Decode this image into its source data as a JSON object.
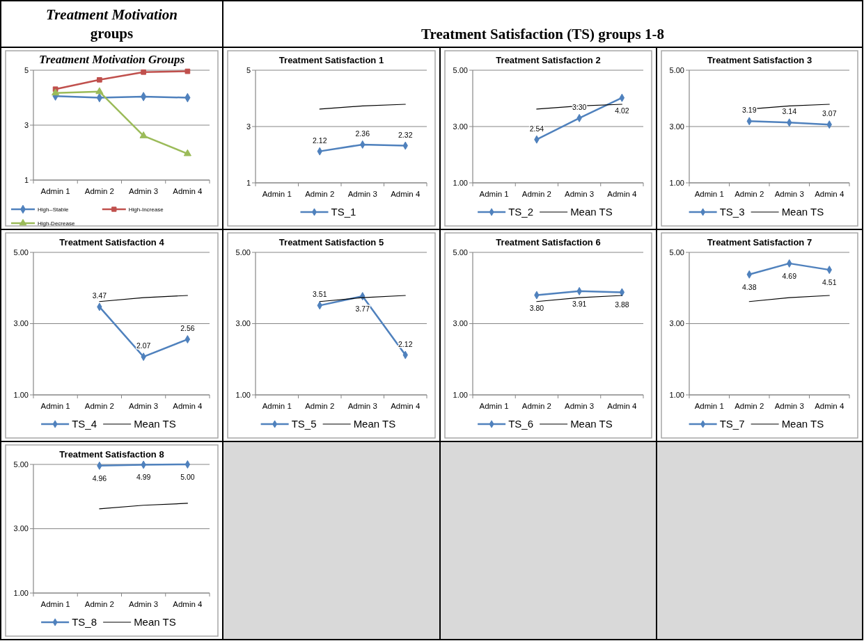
{
  "chart_data": [
    {
      "type": "line",
      "title": "Treatment Motivation Groups",
      "annotations": [
        "Treatment Motivation groups"
      ],
      "categories": [
        "Admin 1",
        "Admin 2",
        "Admin 3",
        "Admin 4"
      ],
      "ylim": [
        1,
        5
      ],
      "yticks": [
        1,
        3,
        5
      ],
      "grid": "y",
      "legend": "bottom",
      "line_style": "solid",
      "series": [
        {
          "name": "High--Stable",
          "color": "#4f81bd",
          "marker": "diamond",
          "values": [
            4.06,
            4.0,
            4.04,
            4.0
          ]
        },
        {
          "name": "High-Increase",
          "color": "#c0504d",
          "marker": "square",
          "values": [
            4.31,
            4.65,
            4.93,
            4.96
          ]
        },
        {
          "name": "High-Decrease",
          "color": "#9bbb59",
          "marker": "triangle",
          "values": [
            4.17,
            4.22,
            2.61,
            1.96
          ]
        }
      ]
    },
    {
      "type": "line",
      "title": "Treatment Satisfaction 1",
      "annotations": [
        "Treatment Satisfaction (TS) groups 1-8"
      ],
      "categories": [
        "Admin 1",
        "Admin 2",
        "Admin 3",
        "Admin 4"
      ],
      "ylim": [
        1,
        5
      ],
      "yticks": [
        1,
        3,
        5
      ],
      "grid": "y",
      "legend": "bottom",
      "line_style": "solid",
      "series": [
        {
          "name": "TS_1",
          "color": "#4f81bd",
          "marker": "diamond",
          "values": [
            null,
            2.12,
            2.36,
            2.32
          ],
          "value_labels": [
            null,
            "2.12",
            "2.36",
            "2.32"
          ]
        },
        {
          "color": "#000000",
          "marker": "none",
          "values": [
            null,
            3.62,
            3.73,
            3.79
          ]
        }
      ]
    },
    {
      "type": "line",
      "title": "Treatment Satisfaction 2",
      "categories": [
        "Admin 1",
        "Admin 2",
        "Admin 3",
        "Admin 4"
      ],
      "ylim": [
        1,
        5
      ],
      "yticks": [
        {
          "value": 1,
          "label": "1.00"
        },
        {
          "value": 3,
          "label": "3.00"
        },
        {
          "value": 5,
          "label": "5.00"
        }
      ],
      "grid": "y",
      "legend": "bottom",
      "line_style": "solid",
      "series": [
        {
          "name": "TS_2",
          "color": "#4f81bd",
          "marker": "diamond",
          "values": [
            null,
            2.54,
            3.3,
            4.02
          ],
          "value_labels": [
            null,
            "2.54",
            "3.30",
            "4.02"
          ]
        },
        {
          "name": "Mean TS",
          "color": "#000000",
          "marker": "none",
          "values": [
            null,
            3.62,
            3.73,
            3.79
          ]
        }
      ]
    },
    {
      "type": "line",
      "title": "Treatment Satisfaction 3",
      "categories": [
        "Admin 1",
        "Admin 2",
        "Admin 3",
        "Admin 4"
      ],
      "ylim": [
        1,
        5
      ],
      "yticks": [
        {
          "value": 1,
          "label": "1.00"
        },
        {
          "value": 3,
          "label": "3.00"
        },
        {
          "value": 5,
          "label": "5.00"
        }
      ],
      "grid": "y",
      "legend": "bottom",
      "line_style": "solid",
      "series": [
        {
          "name": "TS_3",
          "color": "#4f81bd",
          "marker": "diamond",
          "values": [
            null,
            3.19,
            3.14,
            3.07
          ],
          "value_labels": [
            null,
            "3.19",
            "3.14",
            "3.07"
          ]
        },
        {
          "name": "Mean TS",
          "color": "#000000",
          "marker": "none",
          "values": [
            null,
            3.62,
            3.73,
            3.79
          ]
        }
      ]
    },
    {
      "type": "line",
      "title": "Treatment Satisfaction 4",
      "categories": [
        "Admin 1",
        "Admin 2",
        "Admin 3",
        "Admin 4"
      ],
      "ylim": [
        1,
        5
      ],
      "yticks": [
        {
          "value": 1,
          "label": "1.00"
        },
        {
          "value": 3,
          "label": "3.00"
        },
        {
          "value": 5,
          "label": "5.00"
        }
      ],
      "grid": "y",
      "legend": "bottom",
      "line_style": "solid",
      "series": [
        {
          "name": "TS_4",
          "color": "#4f81bd",
          "marker": "diamond",
          "values": [
            null,
            3.47,
            2.07,
            2.56
          ],
          "value_labels": [
            null,
            "3.47",
            "2.07",
            "2.56"
          ]
        },
        {
          "name": "Mean TS",
          "color": "#000000",
          "marker": "none",
          "values": [
            null,
            3.62,
            3.73,
            3.79
          ]
        }
      ]
    },
    {
      "type": "line",
      "title": "Treatment Satisfaction 5",
      "categories": [
        "Admin 1",
        "Admin 2",
        "Admin 3",
        "Admin 4"
      ],
      "ylim": [
        1,
        5
      ],
      "yticks": [
        {
          "value": 1,
          "label": "1.00"
        },
        {
          "value": 3,
          "label": "3.00"
        },
        {
          "value": 5,
          "label": "5.00"
        }
      ],
      "grid": "y",
      "legend": "bottom",
      "line_style": "solid",
      "series": [
        {
          "name": "TS_5",
          "color": "#4f81bd",
          "marker": "diamond",
          "values": [
            null,
            3.51,
            3.77,
            2.12
          ],
          "value_labels": [
            null,
            "3.51",
            "3.77",
            "2.12"
          ]
        },
        {
          "name": "Mean TS",
          "color": "#000000",
          "marker": "none",
          "values": [
            null,
            3.62,
            3.73,
            3.79
          ]
        }
      ]
    },
    {
      "type": "line",
      "title": "Treatment Satisfaction 6",
      "categories": [
        "Admin 1",
        "Admin 2",
        "Admin 3",
        "Admin 4"
      ],
      "ylim": [
        1,
        5
      ],
      "yticks": [
        {
          "value": 1,
          "label": "1.00"
        },
        {
          "value": 3,
          "label": "3.00"
        },
        {
          "value": 5,
          "label": "5.00"
        }
      ],
      "grid": "y",
      "legend": "bottom",
      "line_style": "solid",
      "series": [
        {
          "name": "TS_6",
          "color": "#4f81bd",
          "marker": "diamond",
          "values": [
            null,
            3.8,
            3.91,
            3.88
          ],
          "value_labels": [
            null,
            "3.80",
            "3.91",
            "3.88"
          ]
        },
        {
          "name": "Mean TS",
          "color": "#000000",
          "marker": "none",
          "values": [
            null,
            3.62,
            3.73,
            3.79
          ]
        }
      ]
    },
    {
      "type": "line",
      "title": "Treatment Satisfaction 7",
      "categories": [
        "Admin 1",
        "Admin 2",
        "Admin 3",
        "Admin 4"
      ],
      "ylim": [
        1,
        5
      ],
      "yticks": [
        {
          "value": 1,
          "label": "1.00"
        },
        {
          "value": 3,
          "label": "3.00"
        },
        {
          "value": 5,
          "label": "5.00"
        }
      ],
      "grid": "y",
      "legend": "bottom",
      "line_style": "solid",
      "series": [
        {
          "name": "TS_7",
          "color": "#4f81bd",
          "marker": "diamond",
          "values": [
            null,
            4.38,
            4.69,
            4.51
          ],
          "value_labels": [
            null,
            "4.38",
            "4.69",
            "4.51"
          ]
        },
        {
          "name": "Mean TS",
          "color": "#000000",
          "marker": "none",
          "values": [
            null,
            3.62,
            3.73,
            3.79
          ]
        }
      ]
    },
    {
      "type": "line",
      "title": "Treatment Satisfaction 8",
      "categories": [
        "Admin 1",
        "Admin 2",
        "Admin 3",
        "Admin 4"
      ],
      "ylim": [
        1,
        5
      ],
      "yticks": [
        {
          "value": 1,
          "label": "1.00"
        },
        {
          "value": 3,
          "label": "3.00"
        },
        {
          "value": 5,
          "label": "5.00"
        }
      ],
      "grid": "y",
      "legend": "bottom",
      "line_style": "solid",
      "series": [
        {
          "name": "TS_8",
          "color": "#4f81bd",
          "marker": "diamond",
          "values": [
            null,
            4.96,
            4.99,
            5.0
          ],
          "value_labels": [
            null,
            "4.96",
            "4.99",
            "5.00"
          ]
        },
        {
          "name": "Mean TS",
          "color": "#000000",
          "marker": "none",
          "values": [
            null,
            3.62,
            3.73,
            3.79
          ]
        }
      ]
    }
  ]
}
